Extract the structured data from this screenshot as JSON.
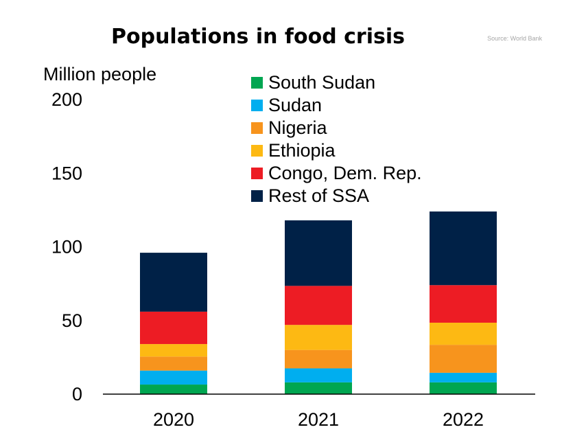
{
  "title": "Populations in food crisis",
  "source": "Source: World Bank",
  "chart_data": {
    "type": "bar",
    "stacked": true,
    "categories": [
      "2020",
      "2021",
      "2022"
    ],
    "series": [
      {
        "name": "South Sudan",
        "color": "#00a651",
        "values": [
          6.5,
          8,
          8
        ]
      },
      {
        "name": "Sudan",
        "color": "#00aeef",
        "values": [
          9.5,
          9.5,
          6.5
        ]
      },
      {
        "name": "Nigeria",
        "color": "#f7941d",
        "values": [
          9.5,
          12.5,
          19
        ]
      },
      {
        "name": "Ethiopia",
        "color": "#fdb913",
        "values": [
          8.5,
          17,
          15
        ]
      },
      {
        "name": "Congo, Dem. Rep.",
        "color": "#ed1c24",
        "values": [
          22,
          26.5,
          25.5
        ]
      },
      {
        "name": "Rest of SSA",
        "color": "#002147",
        "values": [
          40,
          44.5,
          50
        ]
      }
    ],
    "title": "Populations in food crisis",
    "ylabel": "Million people",
    "xlabel": "",
    "ylim": [
      0,
      200
    ],
    "yticks": [
      0,
      50,
      100,
      150,
      200
    ],
    "legend_position": "top-center",
    "grid": false
  }
}
